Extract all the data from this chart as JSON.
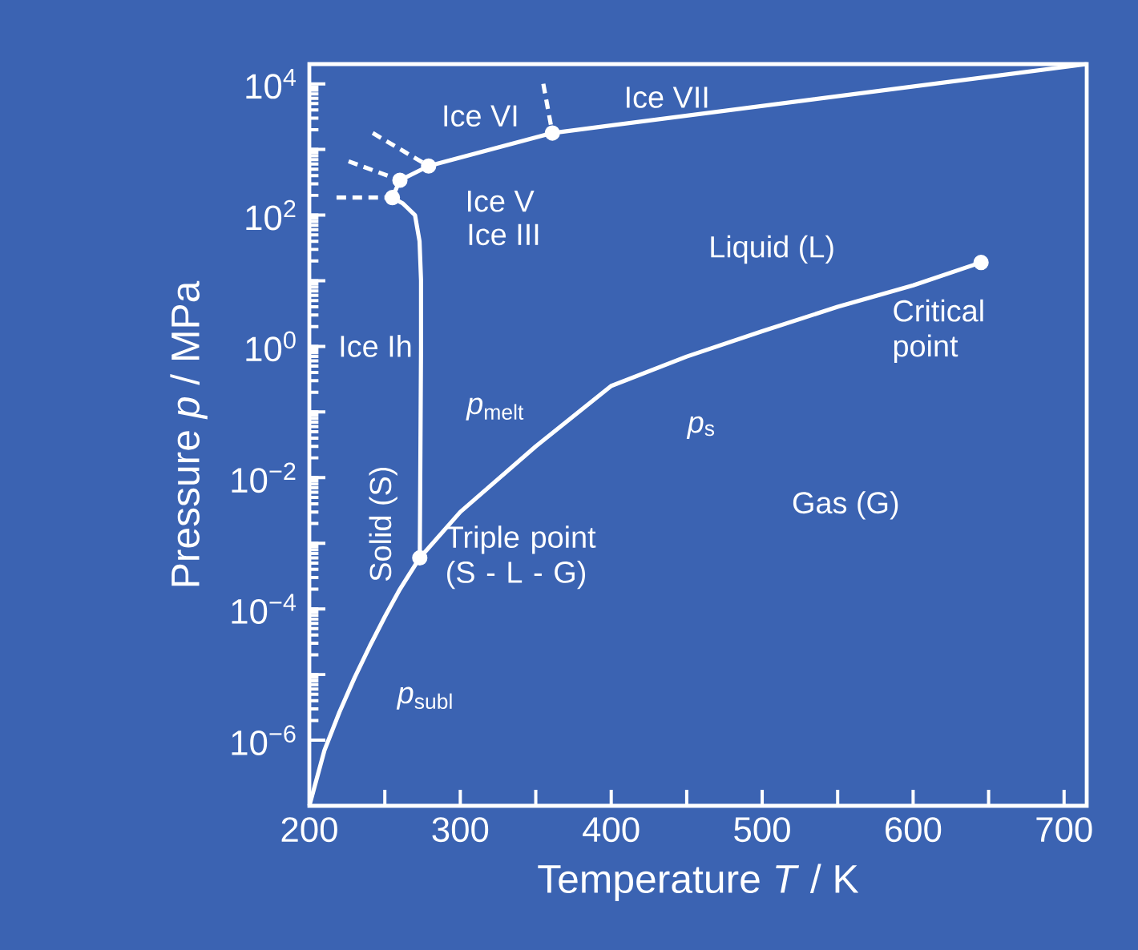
{
  "chart_data": {
    "type": "line",
    "log": "y",
    "xlabel": "Temperature *T* / K",
    "ylabel": "Pressure *p* / MPa",
    "xlim": [
      200,
      715
    ],
    "ylim": [
      1e-07,
      20000
    ],
    "xticks": [
      200,
      {
        "value": 250,
        "label": null
      },
      300,
      {
        "value": 350,
        "label": null
      },
      400,
      {
        "value": 450,
        "label": null
      },
      500,
      {
        "value": 550,
        "label": null
      },
      600,
      {
        "value": 650,
        "label": null
      },
      700
    ],
    "yticks": [
      {
        "value": 1e-06,
        "label": "10$^{−6}$"
      },
      {
        "value": 1e-05,
        "label": null
      },
      {
        "value": 0.0001,
        "label": "10$^{−4}$"
      },
      {
        "value": 0.001,
        "label": null
      },
      {
        "value": 0.01,
        "label": "10$^{−2}$"
      },
      {
        "value": 0.1,
        "label": null
      },
      {
        "value": 1,
        "label": "10$^{0}$"
      },
      {
        "value": 10,
        "label": null
      },
      {
        "value": 100,
        "label": "10$^{2}$"
      },
      {
        "value": 1000,
        "label": null
      },
      {
        "value": 10000,
        "label": "10$^{4}$"
      }
    ],
    "series": [
      {
        "color": "#ffffff",
        "x": [
          200,
          210,
          220,
          230,
          240,
          250,
          260,
          273.16
        ],
        "values": [
          1e-07,
          7e-07,
          2.7e-06,
          9e-06,
          2.7e-05,
          7.6e-05,
          0.0002,
          0.0006
        ]
      },
      {
        "color": "#ffffff",
        "x": [
          273.16,
          300,
          350,
          400,
          450,
          500,
          550,
          600,
          645
        ],
        "values": [
          0.0006,
          0.003,
          0.03,
          0.25,
          0.7,
          1.7,
          4,
          8.5,
          19
        ]
      },
      {
        "color": "#ffffff",
        "x": [
          273.16,
          274,
          274,
          273,
          270,
          262,
          255
        ],
        "values": [
          0.0006,
          1,
          10,
          40,
          100,
          150,
          185
        ]
      },
      {
        "color": "#ffffff",
        "x": [
          255,
          260,
          279,
          361,
          715
        ],
        "values": [
          185,
          340,
          560,
          1780,
          20000
        ]
      },
      {
        "color": "#ffffff",
        "line_style": "dashed",
        "x": [
          218,
          255
        ],
        "values": [
          185,
          185
        ]
      },
      {
        "color": "#ffffff",
        "line_style": "dashed",
        "x": [
          226,
          260
        ],
        "values": [
          660,
          340
        ]
      },
      {
        "color": "#ffffff",
        "line_style": "dashed",
        "x": [
          242,
          279
        ],
        "values": [
          1780,
          560
        ]
      },
      {
        "color": "#ffffff",
        "line_style": "dashed",
        "x": [
          355,
          361
        ],
        "values": [
          10000,
          1780
        ]
      },
      {
        "type": "scatter",
        "marker": "circle",
        "color": "#ffffff",
        "x": [
          255,
          260,
          279,
          361,
          273.16,
          645
        ],
        "values": [
          185,
          340,
          560,
          1780,
          0.0006,
          19
        ]
      }
    ],
    "annotations": [
      "Ice VII",
      "Ice VI",
      "Ice V",
      "Ice III",
      "Liquid (L)",
      "Ice Ih",
      "Critical point",
      "*p*$_{melt}$",
      "*p*$_{s}$",
      "Solid (S)",
      "Gas (G)",
      "Triple point (S - L - G)",
      "*p*$_{subl}$"
    ]
  }
}
